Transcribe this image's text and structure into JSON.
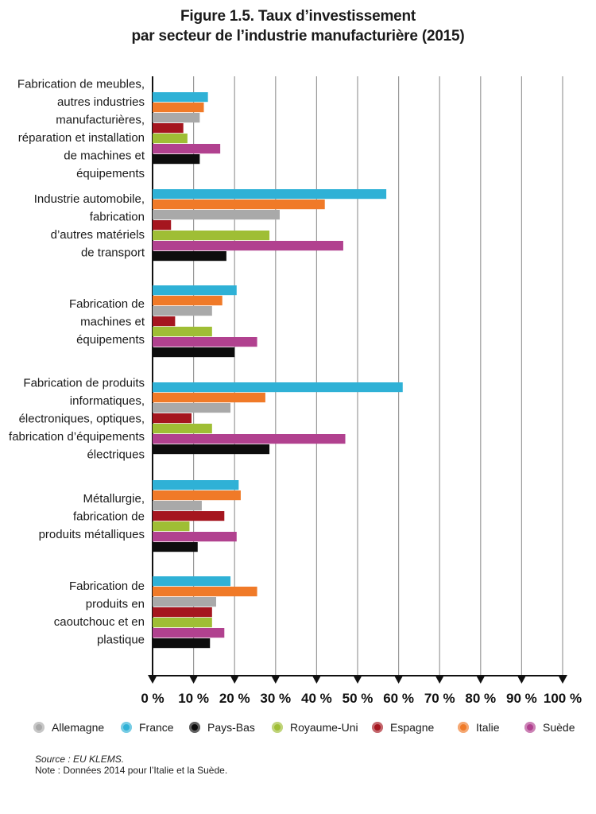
{
  "title_line1": "Figure 1.5. Taux d’investissement",
  "title_line2": "par secteur de l’industrie manufacturière (2015)",
  "source": "Source : EU KLEMS.",
  "note": "Note : Données 2014 pour l’Italie et la Suède.",
  "legend": [
    {
      "name": "Allemagne",
      "color": "#a9a9a9"
    },
    {
      "name": "France",
      "color": "#2fb1d6"
    },
    {
      "name": "Pays-Bas",
      "color": "#0d0d0d"
    },
    {
      "name": "Royaume-Uni",
      "color": "#9fbe35"
    },
    {
      "name": "Espagne",
      "color": "#a5161f"
    },
    {
      "name": "Italie",
      "color": "#f07a28"
    },
    {
      "name": "Suède",
      "color": "#b1418f"
    }
  ],
  "chart_data": {
    "type": "bar",
    "orientation": "horizontal",
    "xlim": [
      0,
      100
    ],
    "x_ticks": [
      "0 %",
      "10 %",
      "20 %",
      "30 %",
      "40 %",
      "50 %",
      "60 %",
      "70 %",
      "80 %",
      "90 %",
      "100 %"
    ],
    "grid": true,
    "legend_position": "bottom",
    "categories": [
      [
        "Fabrication de meubles,",
        "autres industries",
        "manufacturières,",
        "réparation et installation",
        "de machines et",
        "équipements"
      ],
      [
        "Industrie automobile,",
        "fabrication",
        "d’autres matériels",
        "de transport"
      ],
      [
        "Fabrication de",
        "machines et",
        "équipements"
      ],
      [
        "Fabrication de produits",
        "informatiques,",
        "électroniques, optiques,",
        "fabrication d’équipements",
        "électriques"
      ],
      [
        "Métallurgie,",
        "fabrication de",
        "produits métalliques"
      ],
      [
        "Fabrication de",
        "produits en",
        "caoutchouc et en",
        "plastique"
      ]
    ],
    "series": [
      {
        "name": "France",
        "color": "#2fb1d6",
        "values": [
          13.5,
          57,
          20.5,
          61,
          21,
          19
        ]
      },
      {
        "name": "Italie",
        "color": "#f07a28",
        "values": [
          12.5,
          42,
          17,
          27.5,
          21.5,
          25.5
        ]
      },
      {
        "name": "Allemagne",
        "color": "#a9a9a9",
        "values": [
          11.5,
          31,
          14.5,
          19,
          12,
          15.5
        ]
      },
      {
        "name": "Espagne",
        "color": "#a5161f",
        "values": [
          7.5,
          4.5,
          5.5,
          9.5,
          17.5,
          14.5
        ]
      },
      {
        "name": "Royaume-Uni",
        "color": "#9fbe35",
        "values": [
          8.5,
          28.5,
          14.5,
          14.5,
          9,
          14.5
        ]
      },
      {
        "name": "Suède",
        "color": "#b1418f",
        "values": [
          16.5,
          46.5,
          25.5,
          47,
          20.5,
          17.5
        ]
      },
      {
        "name": "Pays-Bas",
        "color": "#0d0d0d",
        "values": [
          11.5,
          18,
          20,
          28.5,
          11,
          14
        ]
      }
    ]
  }
}
